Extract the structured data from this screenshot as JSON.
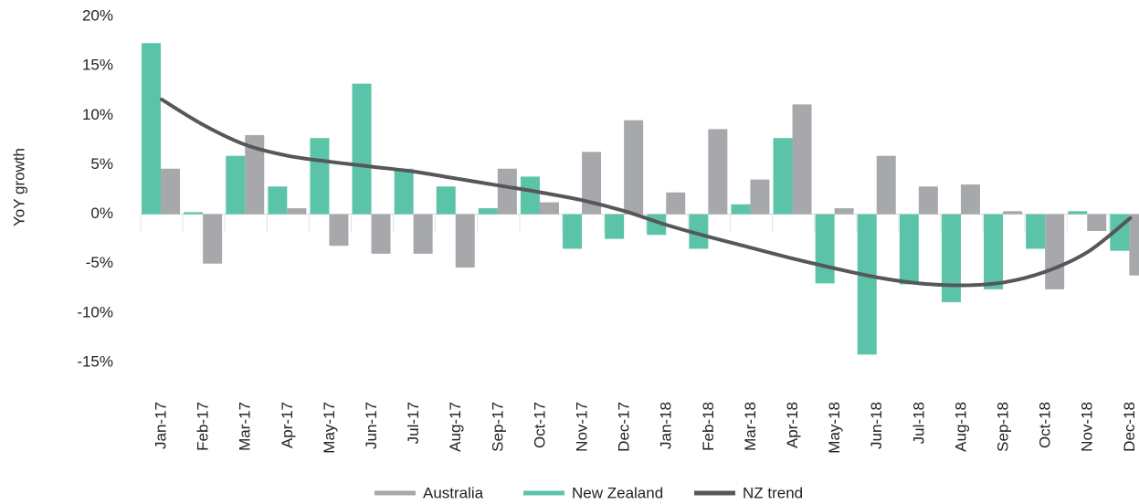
{
  "chart_data": {
    "type": "bar",
    "y_label": "YoY growth",
    "categories": [
      "Jan-17",
      "Feb-17",
      "Mar-17",
      "Apr-17",
      "May-17",
      "Jun-17",
      "Jul-17",
      "Aug-17",
      "Sep-17",
      "Oct-17",
      "Nov-17",
      "Dec-17",
      "Jan-18",
      "Feb-18",
      "Mar-18",
      "Apr-18",
      "May-18",
      "Jun-18",
      "Jul-18",
      "Aug-18",
      "Sep-18",
      "Oct-18",
      "Nov-18",
      "Dec-18"
    ],
    "series": [
      {
        "name": "Australia",
        "color": "#a7a8ab",
        "type": "bar",
        "values": [
          4.6,
          -5.0,
          8.0,
          0.6,
          -3.2,
          -4.0,
          -4.0,
          -5.4,
          4.6,
          1.2,
          6.3,
          9.5,
          2.2,
          8.6,
          3.5,
          11.1,
          0.6,
          5.9,
          2.8,
          3.0,
          0.3,
          -7.6,
          -1.7,
          -6.2
        ]
      },
      {
        "name": "New Zealand",
        "color": "#5bc4a8",
        "type": "bar",
        "values": [
          17.3,
          0.2,
          5.9,
          2.8,
          7.7,
          13.2,
          4.6,
          2.8,
          0.6,
          3.8,
          -3.5,
          -2.5,
          -2.1,
          -3.5,
          1.0,
          7.7,
          -7.0,
          -14.2,
          -7.1,
          -8.9,
          -7.6,
          -3.5,
          0.3,
          -3.7
        ]
      },
      {
        "name": "NZ trend",
        "color": "#555759",
        "type": "line",
        "values": [
          11.6,
          9.0,
          7.0,
          5.9,
          5.3,
          4.8,
          4.3,
          3.6,
          2.9,
          2.2,
          1.4,
          0.3,
          -1.1,
          -2.3,
          -3.4,
          -4.5,
          -5.5,
          -6.4,
          -7.0,
          -7.2,
          -6.9,
          -5.8,
          -3.8,
          -0.4
        ]
      }
    ],
    "ylim": [
      -15,
      20
    ],
    "yticks": [
      {
        "value": -15,
        "label": "-15%"
      },
      {
        "value": -10,
        "label": "-10%"
      },
      {
        "value": -5,
        "label": "-5%"
      },
      {
        "value": 0,
        "label": "0%"
      },
      {
        "value": 5,
        "label": "5%"
      },
      {
        "value": 10,
        "label": "10%"
      },
      {
        "value": 15,
        "label": "15%"
      },
      {
        "value": 20,
        "label": "20%"
      }
    ],
    "grid": false,
    "legend": "bottom"
  }
}
